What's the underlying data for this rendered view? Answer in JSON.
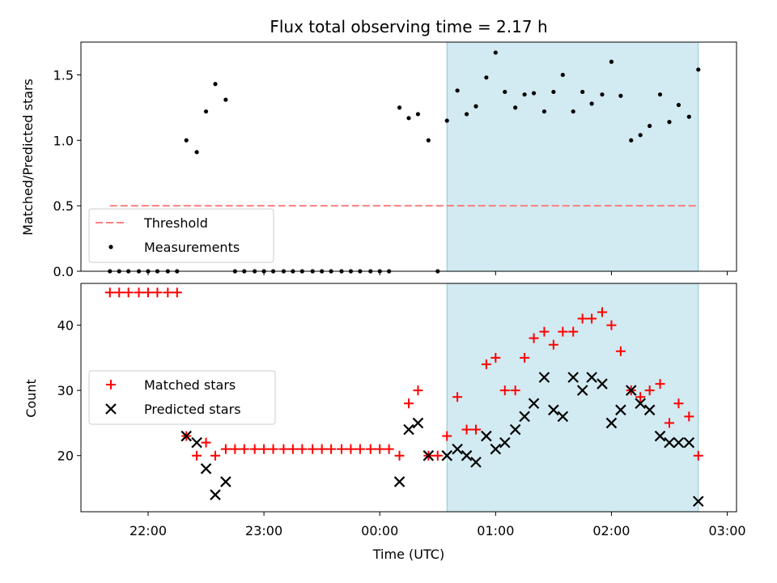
{
  "chart_data": {
    "type": "scatter",
    "title": "Flux total observing time = 2.17 h",
    "xlabel": "Time (UTC)",
    "xticks": [
      "22:00",
      "23:00",
      "00:00",
      "01:00",
      "02:00",
      "03:00"
    ],
    "xlim_hours": [
      21.42,
      27.08
    ],
    "shaded_region_hours": [
      24.58,
      26.75
    ],
    "shade_color": "#add8e6",
    "panels": [
      {
        "name": "ratio",
        "ylabel": "Matched/Predicted stars",
        "ylim": [
          0,
          1.75
        ],
        "yticks": [
          "0.0",
          "0.5",
          "1.0",
          "1.5"
        ],
        "ytick_values": [
          0,
          0.5,
          1.0,
          1.5
        ],
        "legend": [
          "Threshold",
          "Measurements"
        ],
        "threshold": {
          "name": "Threshold",
          "y": 0.5,
          "x_range_hours": [
            21.67,
            26.75
          ],
          "color": "#ff7f7f"
        },
        "series": [
          {
            "name": "Measurements",
            "color": "#000000",
            "x": [
              21.67,
              21.75,
              21.83,
              21.92,
              22.0,
              22.08,
              22.17,
              22.25,
              22.33,
              22.42,
              22.5,
              22.58,
              22.67,
              22.75,
              22.83,
              22.92,
              23.0,
              23.08,
              23.17,
              23.25,
              23.33,
              23.42,
              23.5,
              23.58,
              23.67,
              23.75,
              23.83,
              23.92,
              24.0,
              24.08,
              24.17,
              24.25,
              24.33,
              24.42,
              24.5,
              24.58,
              24.67,
              24.75,
              24.83,
              24.92,
              25.0,
              25.08,
              25.17,
              25.25,
              25.33,
              25.42,
              25.5,
              25.58,
              25.67,
              25.75,
              25.83,
              25.92,
              26.0,
              26.08,
              26.17,
              26.25,
              26.33,
              26.42,
              26.5,
              26.58,
              26.67,
              26.75
            ],
            "y": [
              0,
              0,
              0,
              0,
              0,
              0,
              0,
              0,
              1.0,
              0.91,
              1.22,
              1.43,
              1.31,
              0,
              0,
              0,
              0,
              0,
              0,
              0,
              0,
              0,
              0,
              0,
              0,
              0,
              0,
              0,
              0,
              0,
              1.25,
              1.17,
              1.2,
              1.0,
              0,
              1.15,
              1.38,
              1.2,
              1.26,
              1.48,
              1.67,
              1.37,
              1.25,
              1.35,
              1.36,
              1.22,
              1.37,
              1.5,
              1.22,
              1.37,
              1.28,
              1.35,
              1.6,
              1.34,
              1.0,
              1.04,
              1.11,
              1.35,
              1.14,
              1.27,
              1.18,
              1.54
            ]
          }
        ]
      },
      {
        "name": "count",
        "ylabel": "Count",
        "ylim": [
          11.4,
          46.4
        ],
        "yticks": [
          "20",
          "30",
          "40"
        ],
        "ytick_values": [
          20,
          30,
          40
        ],
        "legend": [
          "Matched stars",
          "Predicted stars"
        ],
        "series": [
          {
            "name": "Matched stars",
            "marker": "plus",
            "color": "#ff0000",
            "x": [
              21.67,
              21.75,
              21.83,
              21.92,
              22.0,
              22.08,
              22.17,
              22.25,
              22.33,
              22.42,
              22.5,
              22.58,
              22.67,
              22.75,
              22.83,
              22.92,
              23.0,
              23.08,
              23.17,
              23.25,
              23.33,
              23.42,
              23.5,
              23.58,
              23.67,
              23.75,
              23.83,
              23.92,
              24.0,
              24.08,
              24.17,
              24.25,
              24.33,
              24.42,
              24.5,
              24.58,
              24.67,
              24.75,
              24.83,
              24.92,
              25.0,
              25.08,
              25.17,
              25.25,
              25.33,
              25.42,
              25.5,
              25.58,
              25.67,
              25.75,
              25.83,
              25.92,
              26.0,
              26.08,
              26.17,
              26.25,
              26.33,
              26.42,
              26.5,
              26.58,
              26.67,
              26.75
            ],
            "y": [
              45,
              45,
              45,
              45,
              45,
              45,
              45,
              45,
              23,
              20,
              22,
              20,
              21,
              21,
              21,
              21,
              21,
              21,
              21,
              21,
              21,
              21,
              21,
              21,
              21,
              21,
              21,
              21,
              21,
              21,
              20,
              28,
              30,
              20,
              20,
              23,
              29,
              24,
              24,
              34,
              35,
              30,
              30,
              35,
              38,
              39,
              37,
              39,
              39,
              41,
              41,
              42,
              40,
              36,
              30,
              29,
              30,
              31,
              25,
              28,
              26,
              20
            ]
          },
          {
            "name": "Predicted stars",
            "marker": "x",
            "color": "#000000",
            "x": [
              22.33,
              22.42,
              22.5,
              22.58,
              22.67,
              24.17,
              24.25,
              24.33,
              24.42,
              24.58,
              24.67,
              24.75,
              24.83,
              24.92,
              25.0,
              25.08,
              25.17,
              25.25,
              25.33,
              25.42,
              25.5,
              25.58,
              25.67,
              25.75,
              25.83,
              25.92,
              26.0,
              26.08,
              26.17,
              26.25,
              26.33,
              26.42,
              26.5,
              26.58,
              26.67,
              26.75
            ],
            "y": [
              23,
              22,
              18,
              14,
              16,
              16,
              24,
              25,
              20,
              20,
              21,
              20,
              19,
              23,
              21,
              22,
              24,
              26,
              28,
              32,
              27,
              26,
              32,
              30,
              32,
              31,
              25,
              27,
              30,
              28,
              27,
              23,
              22,
              22,
              22,
              13
            ]
          }
        ]
      }
    ]
  }
}
